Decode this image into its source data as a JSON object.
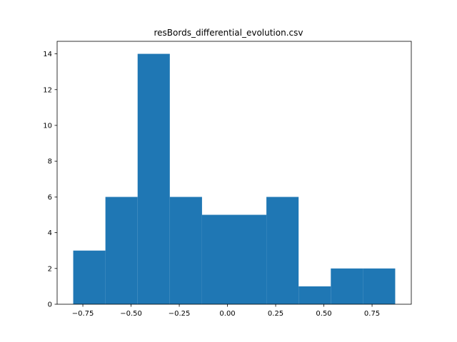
{
  "chart_data": {
    "type": "bar",
    "subtype": "histogram",
    "title": "resBords_differential_evolution.csv",
    "xlabel": "",
    "ylabel": "",
    "bin_edges": [
      -0.8,
      -0.633,
      -0.466,
      -0.299,
      -0.132,
      0.035,
      0.202,
      0.369,
      0.536,
      0.703,
      0.87
    ],
    "values": [
      3,
      6,
      14,
      6,
      5,
      5,
      6,
      1,
      2,
      2
    ],
    "xlim": [
      -0.8835,
      0.9535
    ],
    "ylim": [
      0,
      14.7
    ],
    "xticks": [
      -0.75,
      -0.5,
      -0.25,
      0.0,
      0.25,
      0.5,
      0.75
    ],
    "xtick_labels": [
      "−0.75",
      "−0.50",
      "−0.25",
      "0.00",
      "0.25",
      "0.50",
      "0.75"
    ],
    "yticks": [
      0,
      2,
      4,
      6,
      8,
      10,
      12,
      14
    ],
    "ytick_labels": [
      "0",
      "2",
      "4",
      "6",
      "8",
      "10",
      "12",
      "14"
    ],
    "bar_color": "#1f77b4",
    "grid": false,
    "legend": "none"
  }
}
